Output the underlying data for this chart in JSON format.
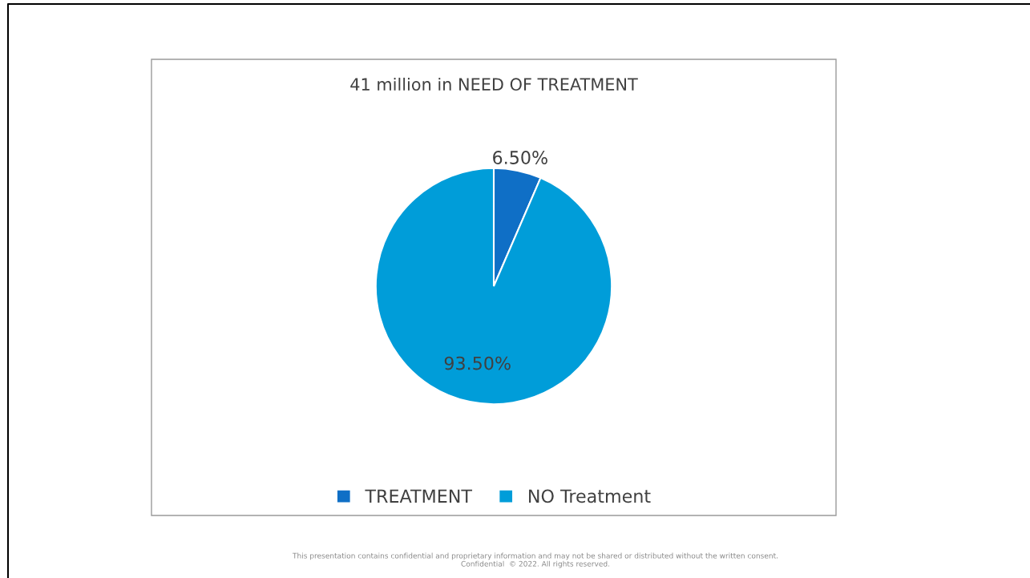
{
  "chart_data": {
    "type": "pie",
    "title": "41 million in NEED OF TREATMENT",
    "categories": [
      "TREATMENT",
      "NO Treatment"
    ],
    "values": [
      6.5,
      93.5
    ],
    "colors": [
      "#0f6fc6",
      "#009dd9"
    ],
    "value_labels": [
      "6.50%",
      "93.50%"
    ],
    "legend": "bottom",
    "annotations": [
      "This presentation contains confidential and proprietary information and may not be shared or distributed without the written consent.\nConfidential  © 2022. All rights reserved."
    ]
  }
}
